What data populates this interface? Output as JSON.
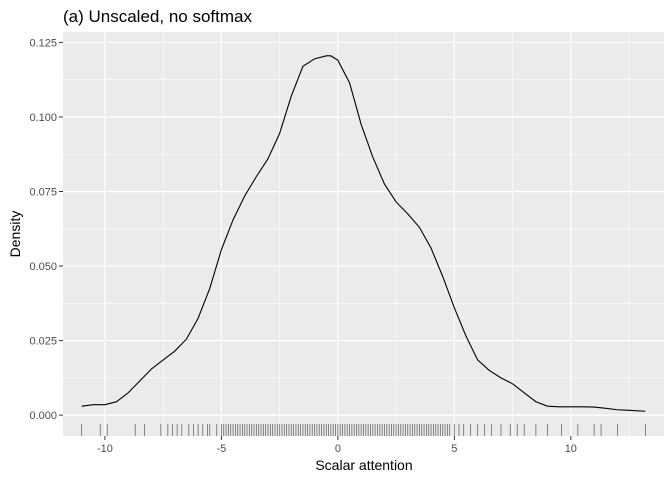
{
  "chart_data": {
    "type": "line",
    "title": "(a) Unscaled, no softmax",
    "xlabel": "Scalar attention",
    "ylabel": "Density",
    "xlim": [
      -11.8,
      14.0
    ],
    "ylim": [
      -0.007,
      0.1285
    ],
    "x_ticks": [
      -10,
      -5,
      0,
      5,
      10
    ],
    "y_ticks": [
      0.0,
      0.025,
      0.05,
      0.075,
      0.1,
      0.125
    ],
    "x_tick_labels": [
      "-10",
      "-5",
      "0",
      "5",
      "10"
    ],
    "y_tick_labels": [
      "0.000",
      "0.025",
      "0.050",
      "0.075",
      "0.100",
      "0.125"
    ],
    "grid": true,
    "background": "#ebebeb",
    "grid_color": "#ffffff",
    "line_color": "#000000",
    "rug_color": "#000000",
    "series": [
      {
        "x": [
          -11.0,
          -10.5,
          -10.0,
          -9.5,
          -9.0,
          -8.5,
          -8.0,
          -7.5,
          -7.0,
          -6.5,
          -6.0,
          -5.5,
          -5.0,
          -4.5,
          -4.0,
          -3.5,
          -3.0,
          -2.5,
          -2.0,
          -1.5,
          -1.0,
          -0.5,
          -0.3,
          0.0,
          0.5,
          1.0,
          1.5,
          2.0,
          2.5,
          3.0,
          3.5,
          4.0,
          4.5,
          5.0,
          5.5,
          6.0,
          6.5,
          7.0,
          7.5,
          8.0,
          8.5,
          9.0,
          9.5,
          10.0,
          10.5,
          11.0,
          11.5,
          12.0,
          12.5,
          13.2
        ],
        "y": [
          0.003,
          0.0035,
          0.0035,
          0.0045,
          0.0075,
          0.0115,
          0.0155,
          0.0185,
          0.0215,
          0.0255,
          0.0325,
          0.0425,
          0.0555,
          0.0655,
          0.0735,
          0.08,
          0.086,
          0.0945,
          0.107,
          0.117,
          0.1195,
          0.1205,
          0.1205,
          0.119,
          0.1115,
          0.0975,
          0.0865,
          0.0775,
          0.0715,
          0.0675,
          0.063,
          0.056,
          0.0465,
          0.036,
          0.0265,
          0.0185,
          0.015,
          0.0125,
          0.0105,
          0.0075,
          0.0045,
          0.003,
          0.0028,
          0.0028,
          0.0028,
          0.0027,
          0.0023,
          0.0018,
          0.0016,
          0.0013
        ]
      }
    ],
    "rug": [
      -11.0,
      -10.2,
      -9.9,
      -8.7,
      -8.3,
      -7.6,
      -7.3,
      -7.1,
      -6.9,
      -6.7,
      -6.4,
      -6.2,
      -6.0,
      -5.8,
      -5.6,
      -5.5,
      -5.2,
      -5.0,
      -4.9,
      -4.8,
      -4.7,
      -4.6,
      -4.5,
      -4.4,
      -4.3,
      -4.2,
      -4.1,
      -4.0,
      -3.9,
      -3.8,
      -3.7,
      -3.6,
      -3.5,
      -3.4,
      -3.3,
      -3.2,
      -3.1,
      -3.0,
      -2.9,
      -2.8,
      -2.7,
      -2.6,
      -2.5,
      -2.4,
      -2.3,
      -2.2,
      -2.1,
      -2.0,
      -1.9,
      -1.8,
      -1.7,
      -1.6,
      -1.5,
      -1.4,
      -1.3,
      -1.2,
      -1.1,
      -1.0,
      -0.9,
      -0.8,
      -0.7,
      -0.6,
      -0.5,
      -0.4,
      -0.3,
      -0.2,
      -0.1,
      0.0,
      0.1,
      0.2,
      0.3,
      0.4,
      0.5,
      0.6,
      0.7,
      0.8,
      0.9,
      1.0,
      1.1,
      1.2,
      1.3,
      1.4,
      1.5,
      1.6,
      1.7,
      1.8,
      1.9,
      2.0,
      2.1,
      2.2,
      2.3,
      2.4,
      2.5,
      2.6,
      2.7,
      2.8,
      2.9,
      3.0,
      3.1,
      3.2,
      3.3,
      3.4,
      3.5,
      3.6,
      3.7,
      3.8,
      3.9,
      4.0,
      4.1,
      4.2,
      4.3,
      4.4,
      4.5,
      4.6,
      4.7,
      4.8,
      5.0,
      5.2,
      5.4,
      5.7,
      6.0,
      6.3,
      6.6,
      7.0,
      7.4,
      7.7,
      8.0,
      8.5,
      9.0,
      9.6,
      10.3,
      11.0,
      11.3,
      12.0,
      13.2
    ]
  }
}
